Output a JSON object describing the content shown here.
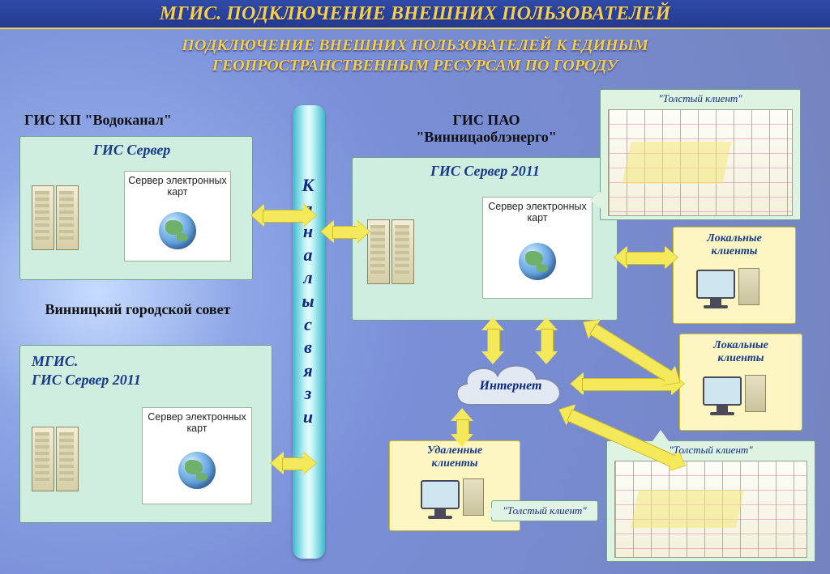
{
  "title": "МГИС. ПОДКЛЮЧЕНИЕ ВНЕШНИХ ПОЛЬЗОВАТЕЛЕЙ",
  "subtitle_l1": "ПОДКЛЮЧЕНИЕ ВНЕШНИХ ПОЛЬЗОВАТЕЛЕЙ К ЕДИНЫМ",
  "subtitle_l2": "ГЕОПРОСТРАНСТВЕННЫМ РЕСУРСАМ ПО ГОРОДУ",
  "channel_label": "Каналы связи",
  "blocks": {
    "vodokanal": {
      "org": "ГИС КП \"Водоканал\"",
      "hd": "ГИС Сервер",
      "box": "Сервер электронных карт"
    },
    "council": {
      "org": "Винницкий городской совет",
      "hd": "МГИС.\nГИС Сервер 2011",
      "box": "Сервер электронных карт"
    },
    "oblenergo": {
      "org": "ГИС ПАО\n\"Винницаоблэнерго\"",
      "hd": "ГИС Сервер 2011",
      "box": "Сервер электронных карт"
    }
  },
  "internet": "Интернет",
  "local_clients": "Локальные\nклиенты",
  "remote_clients": "Удаленные\nклиенты",
  "thick_client": "\"Толстый клиент\"",
  "colors": {
    "panel": "#d0eee0",
    "client": "#fdf6c3",
    "arrow": "#f4e95a",
    "accent": "#153a8a"
  }
}
